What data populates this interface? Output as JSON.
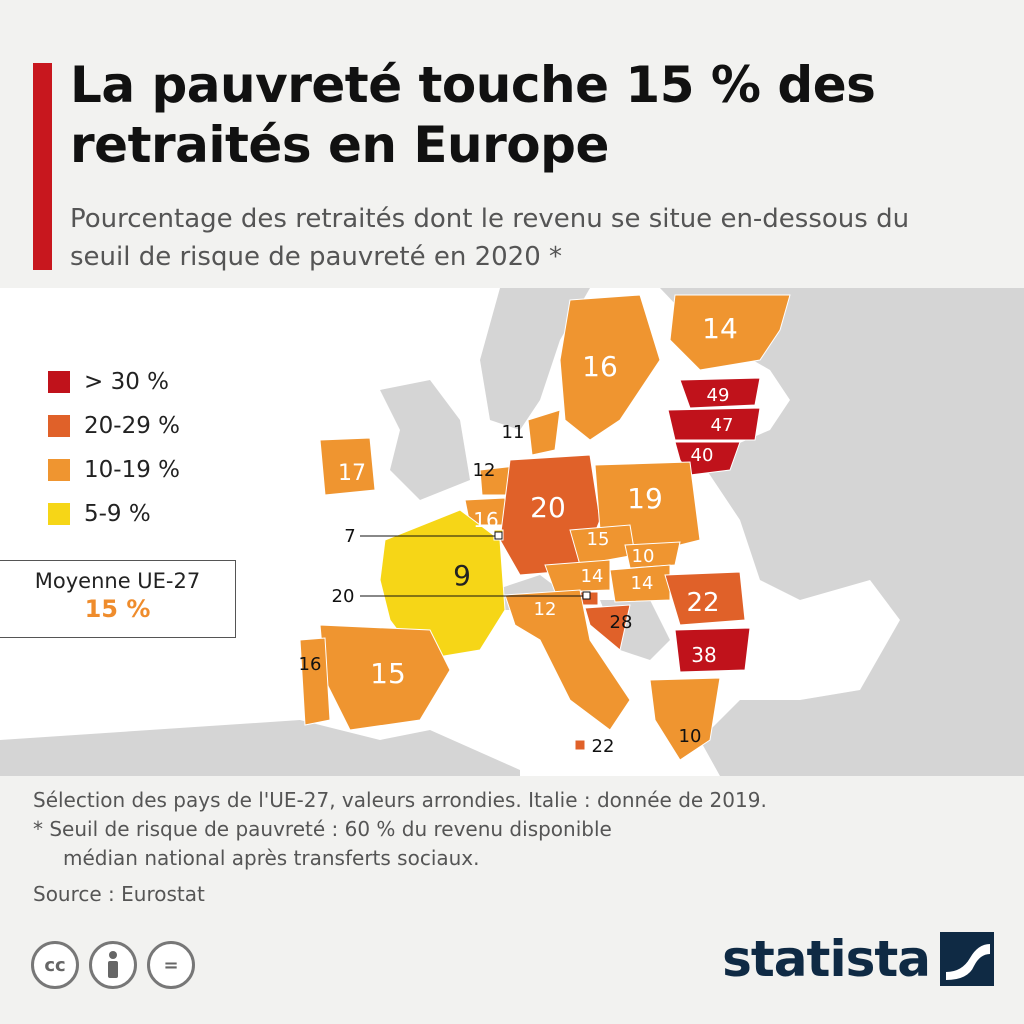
{
  "title": "La pauvreté touche 15 % des retraités en Europe",
  "subtitle": "Pourcentage des retraités dont le revenu se situe en-dessous du seuil de risque de pauvreté en 2020 *",
  "legend": [
    {
      "label": "> 30 %",
      "color": "#c0121b"
    },
    {
      "label": "20-29 %",
      "color": "#e06129"
    },
    {
      "label": "10-19 %",
      "color": "#ef9530"
    },
    {
      "label": "5-9 %",
      "color": "#f6d617"
    }
  ],
  "average": {
    "label": "Moyenne UE-27",
    "value": "15 %"
  },
  "regions": [
    {
      "country": "Estonie",
      "value": "49",
      "category": "> 30 %"
    },
    {
      "country": "Lettonie",
      "value": "47",
      "category": "> 30 %"
    },
    {
      "country": "Lituanie",
      "value": "40",
      "category": "> 30 %"
    },
    {
      "country": "Bulgarie",
      "value": "38",
      "category": "> 30 %"
    },
    {
      "country": "Croatie",
      "value": "28",
      "category": "20-29 %"
    },
    {
      "country": "Malte",
      "value": "22",
      "category": "20-29 %"
    },
    {
      "country": "Roumanie",
      "value": "22",
      "category": "20-29 %"
    },
    {
      "country": "Allemagne",
      "value": "20",
      "category": "20-29 %"
    },
    {
      "country": "Slovénie",
      "value": "20",
      "category": "20-29 %"
    },
    {
      "country": "Pologne",
      "value": "19",
      "category": "10-19 %"
    },
    {
      "country": "Irlande",
      "value": "17",
      "category": "10-19 %"
    },
    {
      "country": "Suède",
      "value": "16",
      "category": "10-19 %"
    },
    {
      "country": "Belgique",
      "value": "16",
      "category": "10-19 %"
    },
    {
      "country": "Portugal",
      "value": "16",
      "category": "10-19 %"
    },
    {
      "country": "Espagne",
      "value": "15",
      "category": "10-19 %"
    },
    {
      "country": "Tchéquie",
      "value": "15",
      "category": "10-19 %"
    },
    {
      "country": "Finlande",
      "value": "14",
      "category": "10-19 %"
    },
    {
      "country": "Autriche",
      "value": "14",
      "category": "10-19 %"
    },
    {
      "country": "Hongrie",
      "value": "14",
      "category": "10-19 %"
    },
    {
      "country": "Pays-Bas",
      "value": "12",
      "category": "10-19 %"
    },
    {
      "country": "Italie",
      "value": "12",
      "category": "10-19 %"
    },
    {
      "country": "Danemark",
      "value": "11",
      "category": "10-19 %"
    },
    {
      "country": "Slovaquie",
      "value": "10",
      "category": "10-19 %"
    },
    {
      "country": "Grèce",
      "value": "10",
      "category": "10-19 %"
    },
    {
      "country": "Luxembourg",
      "value": "7",
      "category": "5-9 %"
    },
    {
      "country": "France",
      "value": "9",
      "category": "5-9 %"
    }
  ],
  "notes": {
    "line1": "Sélection des pays de l'UE-27, valeurs arrondies. Italie : donnée de 2019.",
    "line2": "* Seuil de risque de pauvreté : 60 % du revenu disponible",
    "line3": "médian national après transferts sociaux."
  },
  "source": "Source : Eurostat",
  "license_icons": [
    "cc-icon",
    "person-icon",
    "equals-icon"
  ],
  "license_glyphs": {
    "cc": "cc",
    "eq": "="
  },
  "brand": {
    "name": "statista",
    "color": "#0f2a44"
  }
}
